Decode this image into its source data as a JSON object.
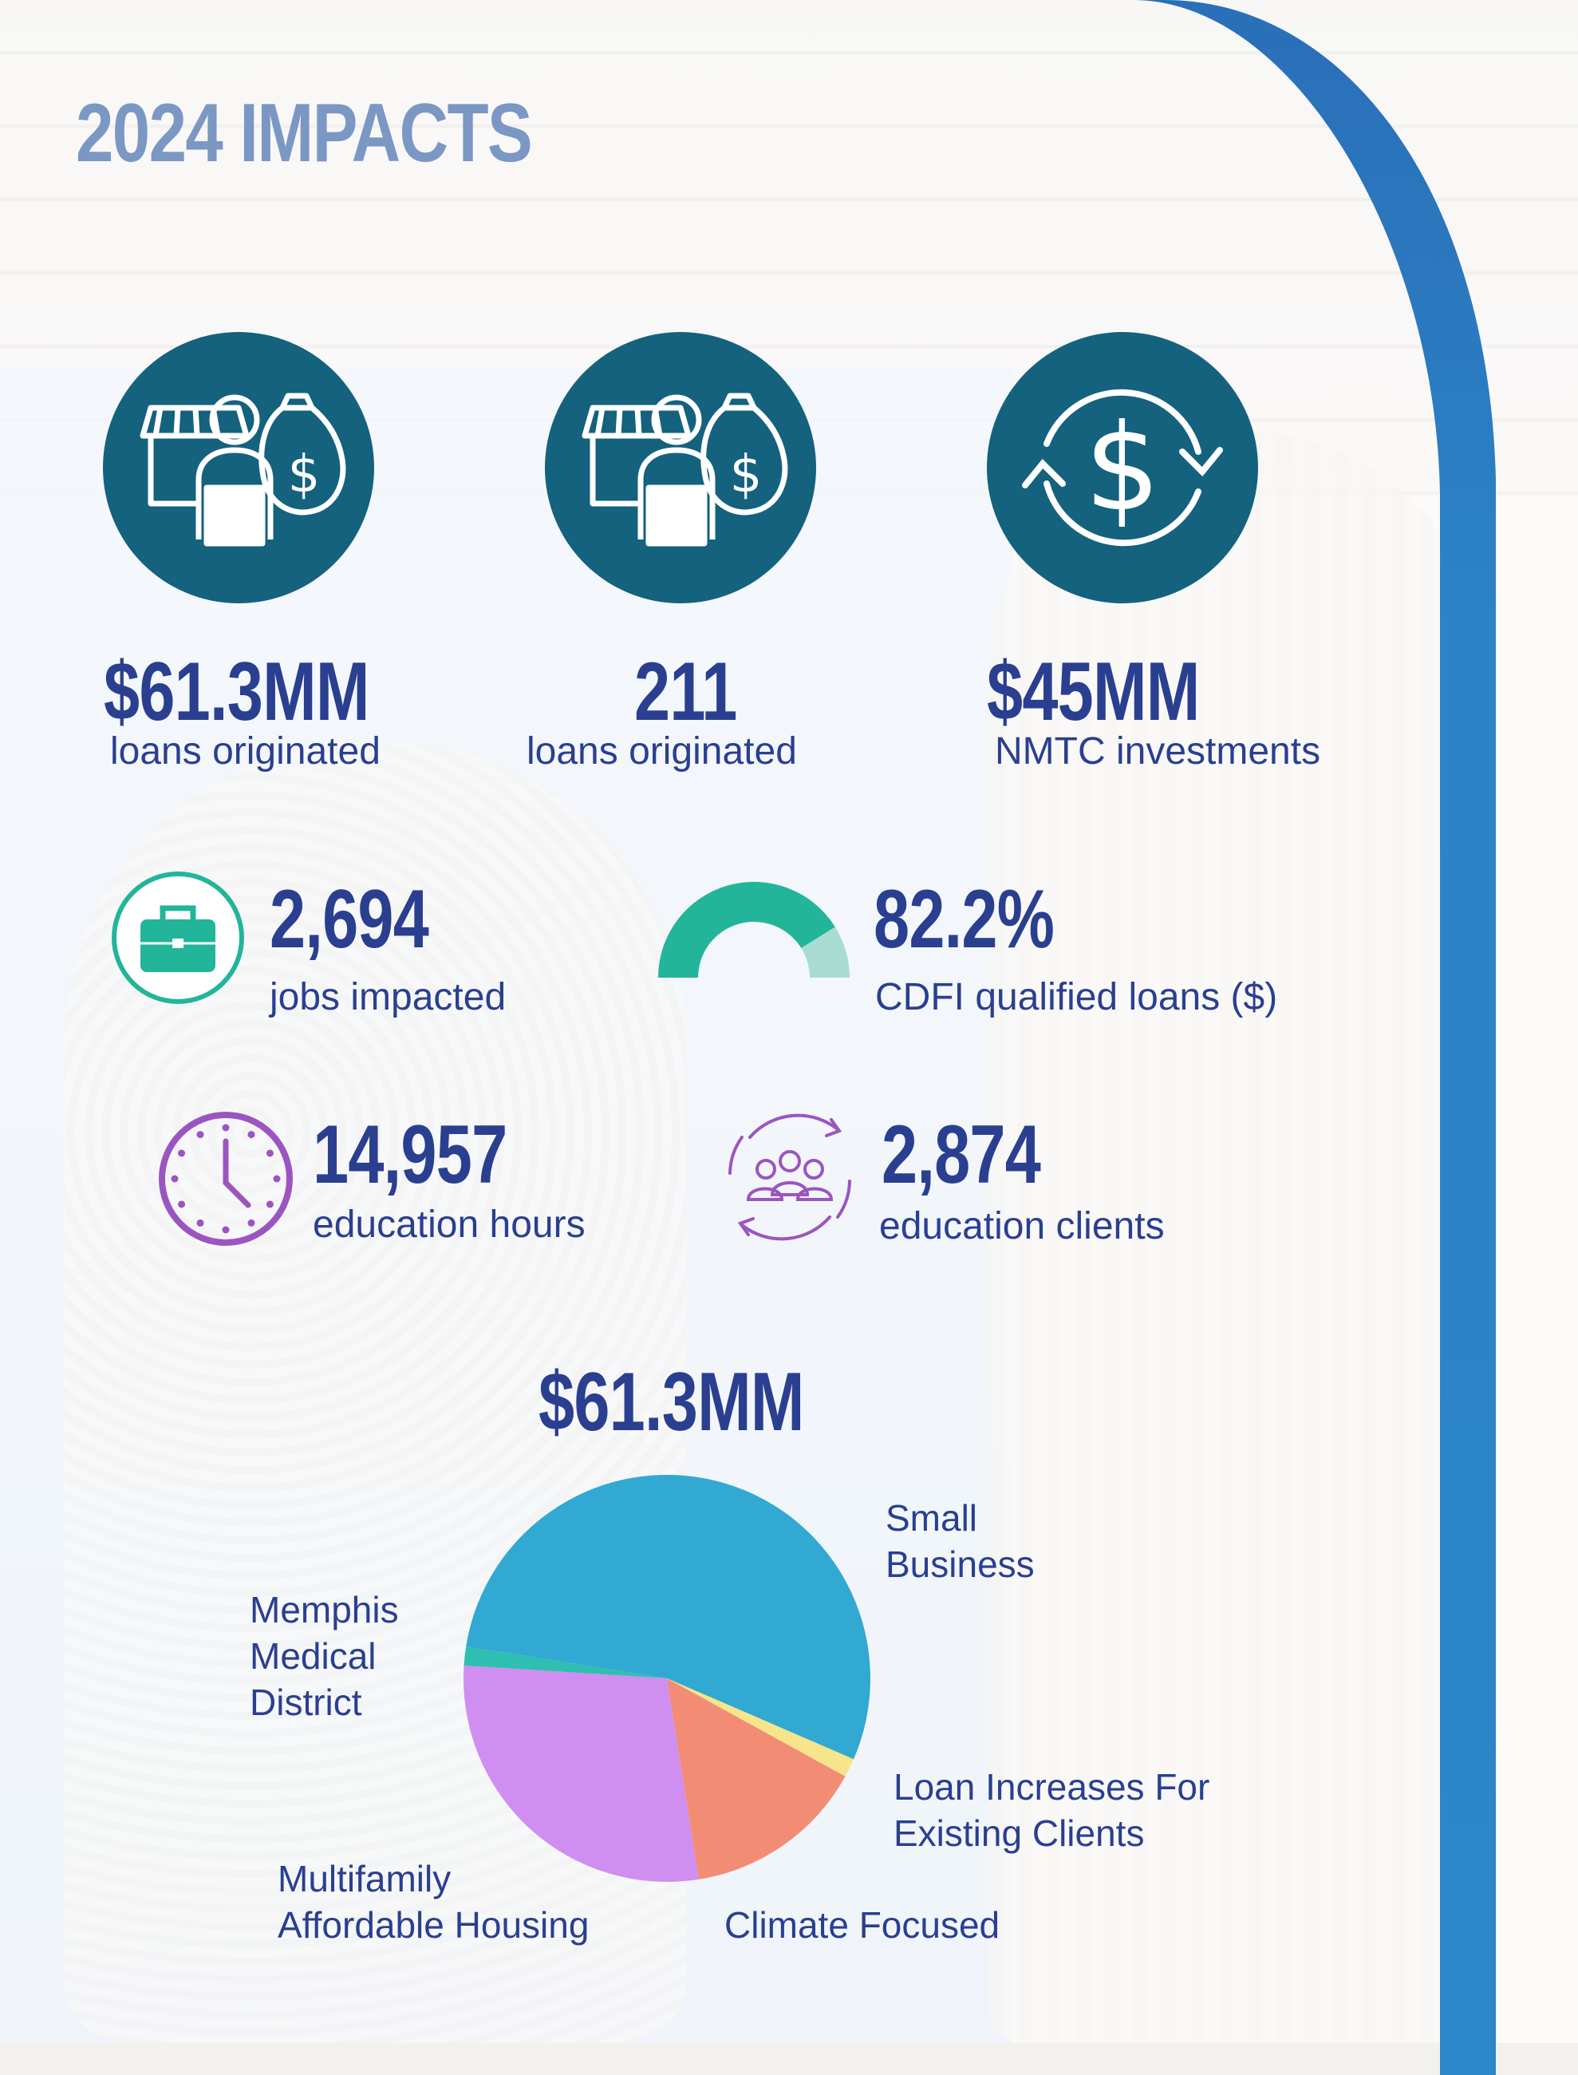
{
  "title": "2024 IMPACTS",
  "colors": {
    "teal_dark": "#14627d",
    "navy": "#2a3f8f",
    "title_blue": "#7b97c3",
    "green": "#22b59a",
    "purple": "#9b55c0",
    "arc_blue": "#2b7fc3"
  },
  "top_stats": [
    {
      "icon": "storefront-owner-money-icon",
      "value": "$61.3MM",
      "label": "loans originated"
    },
    {
      "icon": "storefront-owner-money-icon",
      "value": "211",
      "label": "loans originated"
    },
    {
      "icon": "dollar-cycle-icon",
      "value": "$45MM",
      "label": "NMTC investments"
    }
  ],
  "mid_stats": [
    {
      "icon": "briefcase-icon",
      "value": "2,694",
      "label": "jobs impacted"
    },
    {
      "icon": "half-gauge-icon",
      "value": "82.2%",
      "label": "CDFI qualified loans ($)",
      "gauge_fraction": 0.822
    },
    {
      "icon": "clock-icon",
      "value": "14,957",
      "label": "education hours"
    },
    {
      "icon": "group-cycle-icon",
      "value": "2,874",
      "label": "education clients"
    }
  ],
  "chart_total": "$61.3MM",
  "chart_data": {
    "type": "pie",
    "title": "$61.3MM",
    "slices": [
      {
        "name": "Small Business",
        "value": 54.0,
        "color": "#31a9d2"
      },
      {
        "name": "Loan Increases For Existing Clients",
        "value": 1.5,
        "color": "#f6e58a"
      },
      {
        "name": "Climate Focused",
        "value": 14.5,
        "color": "#f38c75"
      },
      {
        "name": "Multifamily Affordable Housing",
        "value": 28.5,
        "color": "#d08ef0"
      },
      {
        "name": "Memphis Medical District",
        "value": 1.5,
        "color": "#2fbfb1"
      }
    ],
    "labels": {
      "small_business_1": "Small",
      "small_business_2": "Business",
      "loan_increases_1": "Loan Increases For",
      "loan_increases_2": "Existing Clients",
      "climate": "Climate Focused",
      "multifamily_1": "Multifamily",
      "multifamily_2": "Affordable Housing",
      "memphis_1": "Memphis",
      "memphis_2": "Medical",
      "memphis_3": "District"
    }
  }
}
